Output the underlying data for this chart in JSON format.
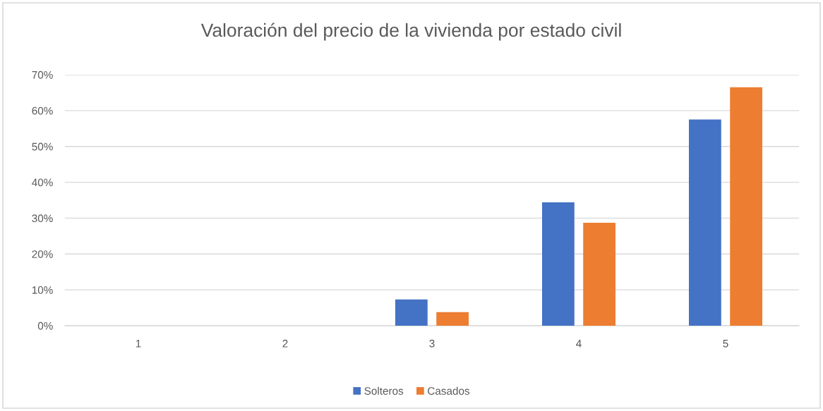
{
  "chart_data": {
    "type": "bar",
    "title": "Valoración del precio de la vivienda por estado civil",
    "categories": [
      "1",
      "2",
      "3",
      "4",
      "5"
    ],
    "series": [
      {
        "name": "Solteros",
        "color": "#4472c4",
        "values": [
          0,
          0,
          7.3,
          34.4,
          57.5
        ]
      },
      {
        "name": "Casados",
        "color": "#ed7d31",
        "values": [
          0,
          0,
          3.8,
          28.7,
          66.5
        ]
      }
    ],
    "ylim": [
      0,
      70
    ],
    "yticks": [
      {
        "value": 0,
        "label": "0%"
      },
      {
        "value": 10,
        "label": "10%"
      },
      {
        "value": 20,
        "label": "20%"
      },
      {
        "value": 30,
        "label": "30%"
      },
      {
        "value": 40,
        "label": "40%"
      },
      {
        "value": 50,
        "label": "50%"
      },
      {
        "value": 60,
        "label": "60%"
      },
      {
        "value": 70,
        "label": "70%"
      }
    ],
    "grid": "y",
    "legend": "bottom"
  }
}
